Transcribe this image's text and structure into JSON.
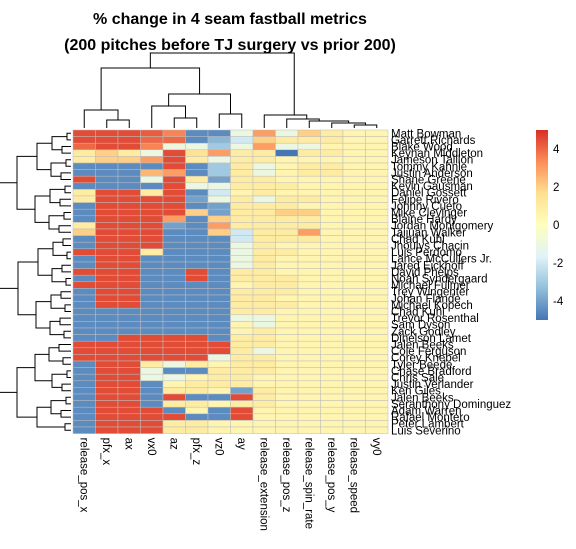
{
  "title_line1": "% change in 4 seam fastball metrics",
  "title_line2": "(200 pitches before TJ surgery vs prior 200)",
  "chart_data": {
    "type": "heatmap",
    "title": "% change in 4 seam fastball metrics (200 pitches before TJ surgery vs prior 200)",
    "columns": [
      "release_pos_x",
      "pfx_x",
      "ax",
      "vx0",
      "az",
      "pfx_z",
      "vz0",
      "ay",
      "release_extension",
      "release_pos_z",
      "release_spin_rate",
      "release_pos_y",
      "release_speed",
      "vy0"
    ],
    "rows": [
      "Matt Bowman",
      "Garrett Richards",
      "Blake Wood",
      "Keynan Middleton",
      "Jameson Taillon",
      "Tommy Kahnle",
      "Justin Anderson",
      "Shane Greene",
      "Kevin Gausman",
      "Daniel Gossett",
      "Felipe Rivero",
      "Johnny Cueto",
      "Mike Clevinger",
      "Blaine Hardy",
      "Jordan Montgomery",
      "Taijuan Walker",
      "Chad Kuhl",
      "Jhoulys Chacin",
      "Luis Perdomo",
      "Lance McCullers Jr.",
      "Jared Eickhoff",
      "David Phelps",
      "Noah Syndergaard",
      "Michael Fulmer",
      "Trey Wingenter",
      "Johan Flande",
      "Michael Kopech",
      "Chad Kuhl",
      "Trevor Rosenthal",
      "Sam Dyson",
      "Zack Godley",
      "Dinelson Lamet",
      "Jalen Beeks",
      "Cole Ferguson",
      "Corey Knebel",
      "Tyler Beede",
      "Chase Bradford",
      "Chris Sale",
      "Justin Verlander",
      "Ken Giles",
      "Jalen Beeks",
      "Seranthony Dominguez",
      "Adam Warren",
      "Rafael Montero",
      "Peter Lambert",
      "Luis Severino"
    ],
    "values": [
      [
        4.5,
        4.5,
        4.5,
        4.2,
        3.5,
        -4.5,
        -4.5,
        -1,
        3,
        -1,
        2,
        1,
        0.5,
        0.5
      ],
      [
        4.5,
        4.5,
        4.5,
        4,
        4,
        -4.5,
        -3.5,
        -2,
        2,
        1,
        1,
        1,
        0.5,
        0.5
      ],
      [
        4,
        4.5,
        4.5,
        3.5,
        -1,
        -1,
        -3,
        -1,
        3,
        -1,
        -1,
        0.5,
        0.5,
        0.5
      ],
      [
        1,
        2,
        1,
        -1,
        4.5,
        1.5,
        3,
        1,
        1,
        -5,
        1,
        1,
        0.5,
        0.5
      ],
      [
        1,
        2,
        2,
        3,
        4.5,
        1,
        -1,
        1,
        1,
        0.5,
        0.5,
        0.5,
        0.5,
        0.5
      ],
      [
        -4.5,
        -4.5,
        -4.5,
        -4.5,
        4.5,
        -4.5,
        -3,
        1,
        -1,
        0.5,
        1,
        1,
        0.5,
        0.5
      ],
      [
        -4.5,
        -4.5,
        -4.5,
        2.5,
        3,
        -4.5,
        -3,
        1,
        -1,
        0.5,
        1,
        1,
        0.5,
        0.5
      ],
      [
        4.5,
        -4.5,
        -4.5,
        -1,
        4.5,
        1,
        -4,
        1,
        1,
        0.5,
        0.5,
        0.5,
        0.5,
        0.5
      ],
      [
        -4.5,
        -4.5,
        -4.5,
        -4.5,
        4.5,
        -1,
        -1,
        1,
        1,
        1,
        0.5,
        0.5,
        0.5,
        0.5
      ],
      [
        1,
        4.5,
        4.5,
        1,
        4.5,
        -4.5,
        -2,
        0.5,
        1,
        0.5,
        0.5,
        0.5,
        0.5,
        0.5
      ],
      [
        1,
        4.5,
        4.5,
        4.5,
        4.5,
        -4,
        -1,
        1,
        -1,
        1,
        1,
        0.5,
        0.5,
        0.5
      ],
      [
        -4.5,
        4.5,
        4.5,
        4.5,
        4.5,
        -4.5,
        -4,
        1,
        1,
        1,
        0.5,
        0.5,
        0.5,
        0.5
      ],
      [
        -4.5,
        4.5,
        4.5,
        4.5,
        4.5,
        2,
        -4,
        1,
        1,
        2,
        2,
        0.5,
        0.5,
        0.5
      ],
      [
        -4.5,
        4.5,
        4.5,
        4.5,
        3,
        -4.5,
        2,
        1,
        1,
        1,
        1,
        0.5,
        0.5,
        0.5
      ],
      [
        1,
        4.5,
        4.5,
        4.5,
        -4,
        -4.5,
        3,
        1,
        1,
        1,
        1,
        0.5,
        0.5,
        0.5
      ],
      [
        2,
        4.5,
        4.5,
        4.5,
        -4.5,
        -4.5,
        2,
        -2,
        1,
        1,
        3,
        0.5,
        0.5,
        0.5
      ],
      [
        -4.5,
        4.5,
        4.5,
        4.5,
        -4.5,
        -4.5,
        -4.5,
        -2,
        1,
        1,
        1,
        0.5,
        0.5,
        0.5
      ],
      [
        -4.5,
        4.5,
        4.5,
        4.5,
        -4.5,
        -4.5,
        -4.5,
        -1,
        1,
        0.5,
        0.5,
        0.5,
        0.5,
        0.5
      ],
      [
        4.5,
        4.5,
        4.5,
        1,
        -4.5,
        -4.5,
        -4.5,
        -1,
        1,
        1,
        0.5,
        0.5,
        0.5,
        0.5
      ],
      [
        -4.5,
        4.5,
        4.5,
        -4.5,
        -4.5,
        -4.5,
        -4.5,
        -1,
        1,
        0.5,
        0.5,
        0.5,
        0.5,
        0.5
      ],
      [
        -4.5,
        4.5,
        4.5,
        -4.5,
        -4.5,
        -4.5,
        -4.5,
        -1,
        1,
        0.5,
        0.5,
        0.5,
        0.5,
        0.5
      ],
      [
        4.5,
        4.5,
        4.5,
        -4.5,
        -4.5,
        4.5,
        -4.5,
        1,
        1,
        0.5,
        0.5,
        0.5,
        0.5,
        0.5
      ],
      [
        -4.5,
        4.5,
        4.5,
        -4.5,
        -4.5,
        4.5,
        -4.5,
        1,
        1,
        1,
        0.5,
        0.5,
        0.5,
        0.5
      ],
      [
        4.5,
        4.5,
        4.5,
        -4.5,
        -4.5,
        -4.5,
        -4.5,
        0.5,
        1,
        1,
        0.5,
        0.5,
        0.5,
        0.5
      ],
      [
        -4.5,
        4.5,
        4.5,
        -4.5,
        -4.5,
        -4.5,
        -4.5,
        1,
        1,
        1,
        0.5,
        0.5,
        0.5,
        0.5
      ],
      [
        -4.5,
        4.5,
        4.5,
        -4.5,
        -4.5,
        -4.5,
        -4.5,
        1,
        1,
        0.5,
        0.5,
        0.5,
        0.5,
        0.5
      ],
      [
        -4.5,
        4.5,
        4.5,
        -4.5,
        -4.5,
        -4.5,
        -4.5,
        1,
        1,
        1,
        0.5,
        0.5,
        0.5,
        0.5
      ],
      [
        -4.5,
        -4.5,
        -4.5,
        -4.5,
        -4.5,
        -4.5,
        -4.5,
        1,
        1,
        0.5,
        0.5,
        0.5,
        0.5,
        0.5
      ],
      [
        -4.5,
        -4.5,
        -4.5,
        -4.5,
        -4.5,
        -4.5,
        -4.5,
        -1,
        -1,
        0.5,
        0.5,
        0.5,
        0.5,
        0.5
      ],
      [
        -4.5,
        -4.5,
        -4.5,
        -4.5,
        -4.5,
        -4.5,
        -4.5,
        0.5,
        -1,
        0.5,
        0.5,
        0.5,
        0.5,
        0.5
      ],
      [
        -4.5,
        -4.5,
        -4.5,
        -4.5,
        -4.5,
        -4.5,
        -4.5,
        0.5,
        1,
        0.5,
        0.5,
        0.5,
        0.5,
        0.5
      ],
      [
        -4.5,
        -4.5,
        4.5,
        4.5,
        4.5,
        4.5,
        -4.5,
        1,
        1,
        0.5,
        0.5,
        0.5,
        0.5,
        0.5
      ],
      [
        4.5,
        4.5,
        4.5,
        4.5,
        4.5,
        4.5,
        4.5,
        1,
        1,
        0.5,
        0.5,
        0.5,
        0.5,
        0.5
      ],
      [
        4.5,
        4.5,
        4.5,
        4.5,
        4.5,
        4.5,
        4.5,
        1,
        -1,
        0.5,
        0.5,
        0.5,
        0.5,
        0.5
      ],
      [
        4.5,
        4.5,
        4.5,
        4.5,
        4.5,
        4.5,
        -1,
        1,
        1,
        0.5,
        0.5,
        0.5,
        0.5,
        0.5
      ],
      [
        -4.5,
        4.5,
        4.5,
        1,
        -1,
        1,
        0.5,
        1,
        1,
        0.5,
        0.5,
        0.5,
        0.5,
        0.5
      ],
      [
        -4.5,
        4.5,
        4.5,
        -1,
        -4.5,
        -4.5,
        1,
        1,
        1,
        0.5,
        0.5,
        0.5,
        0.5,
        0.5
      ],
      [
        -4.5,
        4.5,
        4.5,
        -1,
        -1,
        0.5,
        1,
        1,
        0.5,
        0.5,
        0.5,
        0.5,
        0.5,
        0.5
      ],
      [
        -4.5,
        4.5,
        4.5,
        -4.5,
        0.5,
        1,
        1,
        1,
        0.5,
        0.5,
        0.5,
        0.5,
        0.5,
        0.5
      ],
      [
        -4.5,
        4.5,
        4.5,
        -4.5,
        1,
        1,
        0.5,
        -4,
        1,
        0.5,
        0.5,
        0.5,
        0.5,
        0.5
      ],
      [
        -4.5,
        4.5,
        4.5,
        -4.5,
        4.5,
        -4.5,
        -4.5,
        4.5,
        1,
        0.5,
        0.5,
        0.5,
        0.5,
        0.5
      ],
      [
        -4.5,
        4.5,
        4.5,
        -4.5,
        1,
        1,
        0.5,
        1,
        1,
        0.5,
        0.5,
        0.5,
        0.5,
        0.5
      ],
      [
        -4.5,
        4.5,
        4.5,
        4.5,
        -4.5,
        0.5,
        -4.5,
        4.5,
        0.5,
        0.5,
        0.5,
        0.5,
        0.5,
        0.5
      ],
      [
        -4.5,
        4.5,
        4.5,
        4.5,
        4.5,
        -4.5,
        -4.5,
        4.5,
        0.5,
        0.5,
        0.5,
        0.5,
        0.5,
        0.5
      ],
      [
        -4.5,
        4.5,
        4.5,
        4.5,
        1,
        1,
        0.5,
        0.5,
        0.5,
        0.5,
        0.5,
        0.5,
        0.5,
        0.5
      ],
      [
        -4.5,
        4.5,
        4.5,
        4.5,
        1,
        1,
        0.5,
        0.5,
        0.5,
        0.5,
        0.5,
        0.5,
        0.5,
        0.5
      ]
    ],
    "color_scale": {
      "min": -5,
      "max": 5,
      "stops": [
        "#4575b4",
        "#91bfdb",
        "#e0f3f8",
        "#fffebe",
        "#fee090",
        "#fc8d59",
        "#d73027"
      ]
    },
    "legend": {
      "position": "right",
      "ticks": [
        -4,
        -2,
        0,
        2,
        4
      ],
      "tick_labels": [
        "-4",
        "-2",
        "0",
        "2",
        "4"
      ]
    }
  }
}
